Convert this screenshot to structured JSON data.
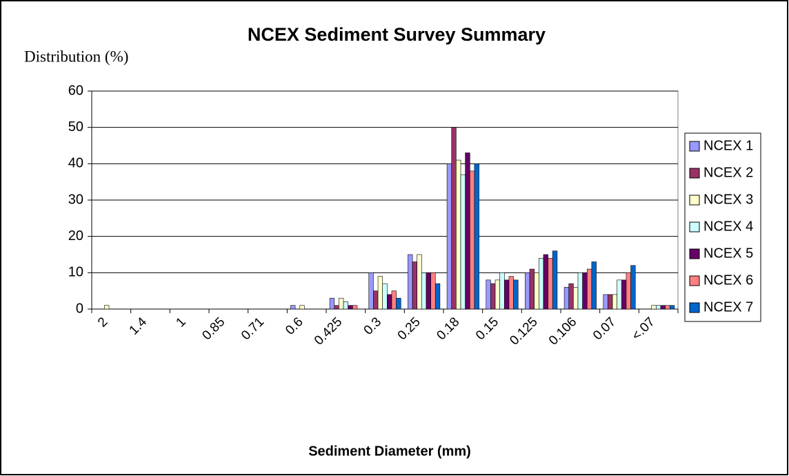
{
  "chart_data": {
    "type": "bar",
    "title": "NCEX Sediment Survey Summary",
    "y_label": "Distribution (%)",
    "x_label": "Sediment Diameter (mm)",
    "categories": [
      "2",
      "1.4",
      "1",
      "0.85",
      "0.71",
      "0.6",
      "0.425",
      "0.3",
      "0.25",
      "0.18",
      "0.15",
      "0.125",
      "0.106",
      "0.07",
      "<.07"
    ],
    "series": [
      {
        "name": "NCEX 1",
        "color": "#9999ff",
        "values": [
          0,
          0,
          0,
          0,
          0,
          1,
          3,
          10,
          15,
          40,
          8,
          10,
          6,
          4,
          0
        ]
      },
      {
        "name": "NCEX 2",
        "color": "#993366",
        "values": [
          0,
          0,
          0,
          0,
          0,
          0,
          1,
          5,
          13,
          50,
          7,
          11,
          7,
          4,
          0
        ]
      },
      {
        "name": "NCEX 3",
        "color": "#ffffcc",
        "values": [
          1,
          0,
          0,
          0,
          0,
          1,
          3,
          9,
          15,
          41,
          8,
          10,
          6,
          4,
          1
        ]
      },
      {
        "name": "NCEX 4",
        "color": "#ccffff",
        "values": [
          0,
          0,
          0,
          0,
          0,
          0,
          2,
          7,
          10,
          37,
          10,
          14,
          10,
          8,
          1
        ]
      },
      {
        "name": "NCEX 5",
        "color": "#660066",
        "values": [
          0,
          0,
          0,
          0,
          0,
          0,
          1,
          4,
          10,
          43,
          8,
          15,
          10,
          8,
          1
        ]
      },
      {
        "name": "NCEX 6",
        "color": "#ff8080",
        "values": [
          0,
          0,
          0,
          0,
          0,
          0,
          1,
          5,
          10,
          38,
          9,
          14,
          11,
          10,
          1
        ]
      },
      {
        "name": "NCEX 7",
        "color": "#0066cc",
        "values": [
          0,
          0,
          0,
          0,
          0,
          0,
          0,
          3,
          7,
          40,
          8,
          16,
          13,
          12,
          1
        ]
      }
    ],
    "ylim": [
      0,
      60
    ],
    "yticks": [
      0,
      10,
      20,
      30,
      40,
      50,
      60
    ],
    "grid": true,
    "legend": "right"
  }
}
